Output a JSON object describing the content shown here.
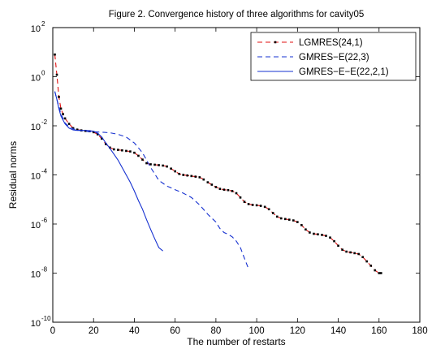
{
  "chart_data": {
    "type": "line",
    "title": "Figure 2. Convergence history of three algorithms for cavity05",
    "xlabel": "The number of restarts",
    "ylabel": "Residual norms",
    "xlim": [
      0,
      180
    ],
    "ylim_exp": [
      -10,
      2
    ],
    "yscale": "log",
    "x_ticks": [
      "0",
      "20",
      "40",
      "60",
      "80",
      "100",
      "120",
      "140",
      "160",
      "180"
    ],
    "y_tick_exponents": [
      "2",
      "0",
      "-2",
      "-4",
      "-6",
      "-8",
      "-10"
    ],
    "y_tick_base": "10",
    "legend_position": "top-right",
    "grid": false,
    "series": [
      {
        "name": "LGMRES(24,1)",
        "color": "#e01010",
        "style": "dashed-with-markers",
        "marker_color": "#000000",
        "x": [
          1,
          2,
          3,
          4,
          5,
          6,
          8,
          10,
          12,
          14,
          16,
          18,
          20,
          22,
          24,
          26,
          28,
          30,
          32,
          34,
          36,
          38,
          40,
          42,
          44,
          46,
          48,
          50,
          52,
          54,
          56,
          58,
          60,
          62,
          64,
          66,
          68,
          70,
          72,
          74,
          76,
          78,
          80,
          82,
          84,
          86,
          88,
          90,
          92,
          94,
          96,
          98,
          100,
          102,
          104,
          106,
          108,
          110,
          112,
          114,
          116,
          118,
          120,
          122,
          124,
          126,
          128,
          130,
          132,
          134,
          136,
          138,
          140,
          142,
          144,
          146,
          148,
          150,
          152,
          154,
          156,
          158,
          160,
          161
        ],
        "y": [
          8,
          1.2,
          0.15,
          0.05,
          0.03,
          0.02,
          0.012,
          0.008,
          0.007,
          0.0065,
          0.0062,
          0.006,
          0.0055,
          0.0045,
          0.003,
          0.0018,
          0.0013,
          0.0011,
          0.00105,
          0.001,
          0.00095,
          0.0009,
          0.0008,
          0.0006,
          0.00042,
          0.0003,
          0.00027,
          0.00026,
          0.00025,
          0.00024,
          0.00022,
          0.00018,
          0.00014,
          0.00011,
          0.0001,
          9.5e-05,
          9e-05,
          8.5e-05,
          8e-05,
          6.5e-05,
          5e-05,
          4e-05,
          3.2e-05,
          2.7e-05,
          2.5e-05,
          2.4e-05,
          2.2e-05,
          1.8e-05,
          1.2e-05,
          8e-06,
          6.5e-06,
          6e-06,
          5.8e-06,
          5.5e-06,
          5e-06,
          4e-06,
          2.8e-06,
          2e-06,
          1.7e-06,
          1.6e-06,
          1.5e-06,
          1.4e-06,
          1.2e-06,
          9e-07,
          6e-07,
          4.5e-07,
          4e-07,
          3.8e-07,
          3.6e-07,
          3.3e-07,
          2.8e-07,
          2e-07,
          1.3e-07,
          9e-08,
          7.5e-08,
          7e-08,
          6.5e-08,
          6e-08,
          4.5e-08,
          3e-08,
          2e-08,
          1.3e-08,
          1e-08,
          1e-08
        ]
      },
      {
        "name": "GMRES−E(22,3)",
        "color": "#1530d0",
        "style": "dashed",
        "x": [
          1,
          2,
          3,
          4,
          5,
          6,
          8,
          10,
          12,
          14,
          16,
          18,
          20,
          24,
          28,
          32,
          36,
          40,
          44,
          48,
          52,
          56,
          60,
          64,
          68,
          72,
          76,
          80,
          82,
          84,
          86,
          88,
          90,
          92,
          94,
          96
        ],
        "y": [
          0.25,
          0.12,
          0.06,
          0.03,
          0.02,
          0.013,
          0.009,
          0.0075,
          0.0068,
          0.0064,
          0.006,
          0.0058,
          0.0057,
          0.0055,
          0.0052,
          0.0045,
          0.0035,
          0.002,
          0.0008,
          0.0002,
          6e-05,
          3.5e-05,
          2.5e-05,
          1.8e-05,
          1.2e-05,
          6e-06,
          2.5e-06,
          1.2e-06,
          6.5e-07,
          4.5e-07,
          3.8e-07,
          3e-07,
          2e-07,
          1.1e-07,
          4e-08,
          1.5e-08
        ]
      },
      {
        "name": "GMRES−E−E(22,2,1)",
        "color": "#1530d0",
        "style": "solid",
        "x": [
          1,
          2,
          3,
          4,
          6,
          8,
          10,
          12,
          14,
          16,
          18,
          20,
          22,
          24,
          26,
          28,
          30,
          32,
          34,
          36,
          38,
          40,
          42,
          44,
          46,
          48,
          50,
          52,
          54
        ],
        "y": [
          0.25,
          0.12,
          0.05,
          0.025,
          0.012,
          0.008,
          0.0068,
          0.0065,
          0.0065,
          0.0065,
          0.0063,
          0.006,
          0.005,
          0.0035,
          0.002,
          0.0012,
          0.0007,
          0.0004,
          0.0002,
          0.0001,
          5e-05,
          2.2e-05,
          9e-06,
          4e-06,
          1.5e-06,
          6e-07,
          2.5e-07,
          1.1e-07,
          8e-08
        ]
      }
    ]
  }
}
